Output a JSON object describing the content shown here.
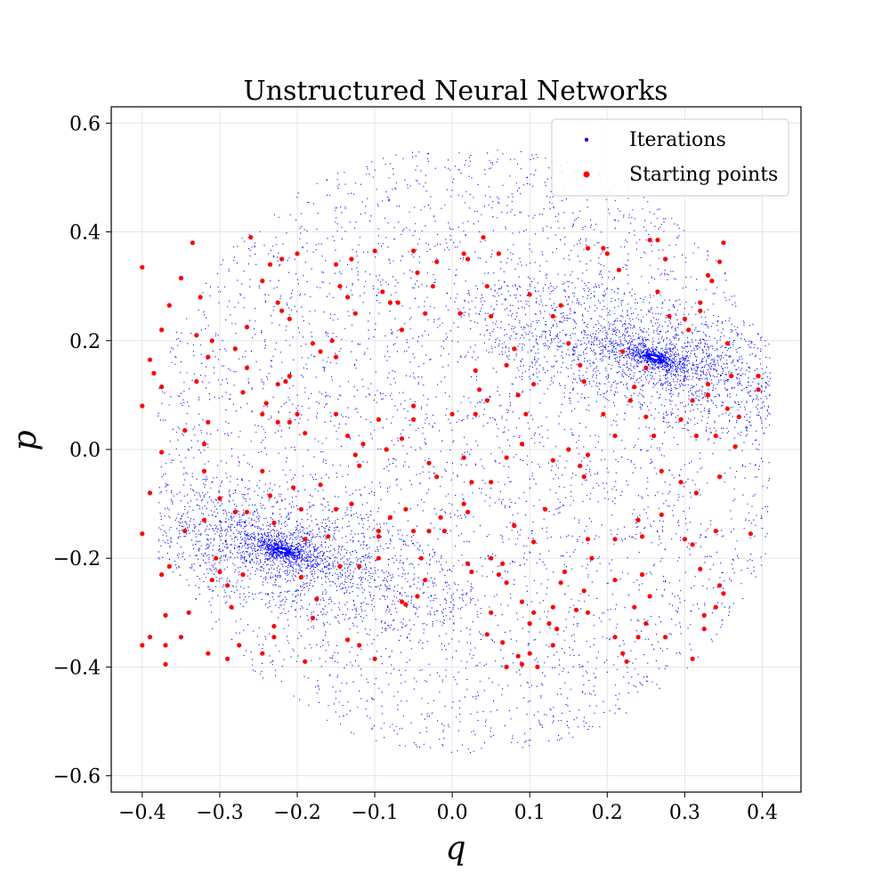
{
  "chart_data": {
    "type": "scatter",
    "title": "Unstructured Neural Networks",
    "xlabel": "q",
    "ylabel": "p",
    "xlim": [
      -0.44,
      0.45
    ],
    "ylim": [
      -0.63,
      0.63
    ],
    "xticks": [
      -0.4,
      -0.3,
      -0.2,
      -0.1,
      0.0,
      0.1,
      0.2,
      0.3,
      0.4
    ],
    "xtick_labels": [
      "−0.4",
      "−0.3",
      "−0.2",
      "−0.1",
      "0.0",
      "0.1",
      "0.2",
      "0.3",
      "0.4"
    ],
    "yticks": [
      -0.6,
      -0.4,
      -0.2,
      0.0,
      0.2,
      0.4,
      0.6
    ],
    "ytick_labels": [
      "−0.6",
      "−0.4",
      "−0.2",
      "0.0",
      "0.2",
      "0.4",
      "0.6"
    ],
    "grid": true,
    "legend_position": "top-right",
    "series": [
      {
        "name": "Iterations",
        "color": "#0000ff",
        "marker_size": "small",
        "attractors": [
          [
            0.26,
            0.17
          ],
          [
            -0.22,
            -0.185
          ]
        ],
        "x_range": [
          -0.38,
          0.41
        ],
        "y_range": [
          -0.58,
          0.58
        ]
      },
      {
        "name": "Starting points",
        "color": "#ff0000",
        "marker_size": "large",
        "points": [
          [
            -0.4,
            0.335
          ],
          [
            -0.35,
            0.315
          ],
          [
            -0.335,
            0.38
          ],
          [
            -0.325,
            0.28
          ],
          [
            -0.365,
            0.265
          ],
          [
            -0.375,
            0.22
          ],
          [
            -0.39,
            0.165
          ],
          [
            -0.385,
            0.14
          ],
          [
            -0.375,
            0.115
          ],
          [
            -0.4,
            0.08
          ],
          [
            -0.345,
            0.035
          ],
          [
            -0.375,
            -0.005
          ],
          [
            -0.39,
            -0.08
          ],
          [
            -0.4,
            -0.155
          ],
          [
            -0.345,
            -0.15
          ],
          [
            -0.365,
            -0.215
          ],
          [
            -0.375,
            -0.23
          ],
          [
            -0.37,
            -0.305
          ],
          [
            -0.34,
            -0.3
          ],
          [
            -0.35,
            -0.345
          ],
          [
            -0.37,
            -0.36
          ],
          [
            -0.39,
            -0.345
          ],
          [
            -0.4,
            -0.36
          ],
          [
            -0.37,
            -0.395
          ],
          [
            -0.315,
            -0.375
          ],
          [
            -0.29,
            -0.385
          ],
          [
            -0.275,
            -0.36
          ],
          [
            -0.285,
            -0.29
          ],
          [
            -0.3,
            -0.225
          ],
          [
            -0.31,
            -0.24
          ],
          [
            -0.29,
            -0.25
          ],
          [
            -0.305,
            -0.2
          ],
          [
            -0.32,
            -0.13
          ],
          [
            -0.3,
            -0.09
          ],
          [
            -0.32,
            -0.04
          ],
          [
            -0.32,
            0.01
          ],
          [
            -0.315,
            0.05
          ],
          [
            -0.33,
            0.125
          ],
          [
            -0.315,
            0.17
          ],
          [
            -0.31,
            0.2
          ],
          [
            -0.33,
            0.21
          ],
          [
            -0.27,
            0.105
          ],
          [
            -0.265,
            0.15
          ],
          [
            -0.28,
            0.185
          ],
          [
            -0.265,
            0.225
          ],
          [
            -0.26,
            0.39
          ],
          [
            -0.245,
            0.31
          ],
          [
            -0.235,
            0.34
          ],
          [
            -0.22,
            0.35
          ],
          [
            -0.225,
            0.27
          ],
          [
            -0.22,
            0.255
          ],
          [
            -0.21,
            0.24
          ],
          [
            -0.225,
            0.12
          ],
          [
            -0.215,
            0.125
          ],
          [
            -0.21,
            0.135
          ],
          [
            -0.245,
            0.065
          ],
          [
            -0.24,
            0.085
          ],
          [
            -0.225,
            0.05
          ],
          [
            -0.21,
            0.05
          ],
          [
            -0.205,
            -0.07
          ],
          [
            -0.245,
            -0.04
          ],
          [
            -0.235,
            -0.085
          ],
          [
            -0.265,
            -0.115
          ],
          [
            -0.28,
            -0.115
          ],
          [
            -0.23,
            -0.135
          ],
          [
            -0.195,
            -0.11
          ],
          [
            -0.19,
            -0.165
          ],
          [
            -0.195,
            -0.235
          ],
          [
            -0.175,
            -0.275
          ],
          [
            -0.18,
            -0.31
          ],
          [
            -0.19,
            -0.39
          ],
          [
            -0.23,
            -0.325
          ],
          [
            -0.23,
            -0.345
          ],
          [
            -0.245,
            -0.375
          ],
          [
            -0.27,
            -0.23
          ],
          [
            -0.2,
            0.36
          ],
          [
            -0.15,
            0.34
          ],
          [
            -0.13,
            0.35
          ],
          [
            -0.135,
            0.28
          ],
          [
            -0.145,
            0.3
          ],
          [
            -0.155,
            0.2
          ],
          [
            -0.15,
            0.17
          ],
          [
            -0.18,
            0.195
          ],
          [
            -0.17,
            0.18
          ],
          [
            -0.125,
            0.25
          ],
          [
            -0.2,
            0.065
          ],
          [
            -0.19,
            0.03
          ],
          [
            -0.17,
            -0.065
          ],
          [
            -0.15,
            -0.11
          ],
          [
            -0.13,
            -0.1
          ],
          [
            -0.15,
            0.065
          ],
          [
            -0.135,
            0.025
          ],
          [
            -0.12,
            -0.03
          ],
          [
            -0.115,
            0.01
          ],
          [
            -0.125,
            -0.01
          ],
          [
            -0.16,
            -0.16
          ],
          [
            -0.145,
            -0.215
          ],
          [
            -0.12,
            -0.215
          ],
          [
            -0.095,
            -0.15
          ],
          [
            -0.095,
            -0.16
          ],
          [
            -0.135,
            -0.35
          ],
          [
            -0.12,
            -0.36
          ],
          [
            -0.1,
            -0.385
          ],
          [
            -0.095,
            -0.2
          ],
          [
            -0.08,
            -0.125
          ],
          [
            -0.1,
            0.365
          ],
          [
            -0.09,
            0.29
          ],
          [
            -0.08,
            0.27
          ],
          [
            -0.07,
            0.27
          ],
          [
            -0.065,
            0.22
          ],
          [
            -0.045,
            0.325
          ],
          [
            -0.05,
            0.365
          ],
          [
            -0.02,
            0.345
          ],
          [
            -0.025,
            0.3
          ],
          [
            -0.035,
            0.25
          ],
          [
            -0.05,
            0.08
          ],
          [
            -0.05,
            0.055
          ],
          [
            -0.065,
            0.02
          ],
          [
            -0.085,
            0.0
          ],
          [
            -0.095,
            0.055
          ],
          [
            -0.06,
            -0.11
          ],
          [
            -0.05,
            -0.15
          ],
          [
            -0.04,
            -0.2
          ],
          [
            -0.045,
            -0.27
          ],
          [
            -0.03,
            -0.15
          ],
          [
            -0.065,
            -0.28
          ],
          [
            -0.06,
            -0.285
          ],
          [
            -0.035,
            -0.24
          ],
          [
            -0.02,
            -0.05
          ],
          [
            -0.03,
            -0.025
          ],
          [
            0.0,
            0.065
          ],
          [
            0.01,
            0.25
          ],
          [
            0.02,
            0.35
          ],
          [
            0.015,
            0.36
          ],
          [
            0.04,
            0.39
          ],
          [
            0.045,
            0.3
          ],
          [
            0.05,
            0.245
          ],
          [
            0.06,
            0.36
          ],
          [
            0.03,
            0.145
          ],
          [
            0.035,
            0.11
          ],
          [
            0.03,
            0.065
          ],
          [
            0.045,
            0.09
          ],
          [
            0.07,
            0.155
          ],
          [
            0.08,
            0.185
          ],
          [
            0.085,
            0.1
          ],
          [
            0.1,
            0.285
          ],
          [
            0.105,
            0.12
          ],
          [
            0.095,
            0.065
          ],
          [
            0.09,
            0.01
          ],
          [
            0.07,
            -0.015
          ],
          [
            0.015,
            -0.015
          ],
          [
            0.025,
            -0.06
          ],
          [
            0.015,
            -0.1
          ],
          [
            0.05,
            -0.06
          ],
          [
            0.02,
            -0.115
          ],
          [
            -0.015,
            -0.125
          ],
          [
            -0.01,
            -0.15
          ],
          [
            0.02,
            -0.21
          ],
          [
            0.025,
            -0.225
          ],
          [
            0.05,
            -0.2
          ],
          [
            0.065,
            -0.21
          ],
          [
            0.06,
            -0.23
          ],
          [
            0.07,
            -0.245
          ],
          [
            0.05,
            -0.3
          ],
          [
            0.045,
            -0.34
          ],
          [
            0.065,
            -0.355
          ],
          [
            0.07,
            -0.4
          ],
          [
            0.085,
            -0.38
          ],
          [
            0.09,
            -0.395
          ],
          [
            0.1,
            -0.375
          ],
          [
            0.09,
            -0.28
          ],
          [
            0.105,
            -0.3
          ],
          [
            0.1,
            -0.32
          ],
          [
            0.11,
            -0.4
          ],
          [
            0.13,
            -0.29
          ],
          [
            0.125,
            -0.32
          ],
          [
            0.135,
            -0.33
          ],
          [
            0.13,
            -0.36
          ],
          [
            0.14,
            -0.245
          ],
          [
            0.145,
            -0.225
          ],
          [
            0.08,
            -0.14
          ],
          [
            0.105,
            -0.17
          ],
          [
            0.12,
            -0.11
          ],
          [
            0.13,
            -0.02
          ],
          [
            0.15,
            0.0
          ],
          [
            0.13,
            0.245
          ],
          [
            0.14,
            0.265
          ],
          [
            0.15,
            0.195
          ],
          [
            0.165,
            0.155
          ],
          [
            0.17,
            0.125
          ],
          [
            0.175,
            0.37
          ],
          [
            0.195,
            0.37
          ],
          [
            0.2,
            0.36
          ],
          [
            0.215,
            0.33
          ],
          [
            0.22,
            0.18
          ],
          [
            0.25,
            0.15
          ],
          [
            0.235,
            0.115
          ],
          [
            0.23,
            0.09
          ],
          [
            0.25,
            0.06
          ],
          [
            0.26,
            0.025
          ],
          [
            0.195,
            0.065
          ],
          [
            0.21,
            0.025
          ],
          [
            0.175,
            -0.01
          ],
          [
            0.165,
            -0.03
          ],
          [
            0.17,
            -0.05
          ],
          [
            0.175,
            -0.165
          ],
          [
            0.21,
            -0.165
          ],
          [
            0.245,
            -0.16
          ],
          [
            0.24,
            -0.13
          ],
          [
            0.27,
            -0.04
          ],
          [
            0.27,
            -0.12
          ],
          [
            0.245,
            -0.23
          ],
          [
            0.255,
            -0.27
          ],
          [
            0.235,
            -0.29
          ],
          [
            0.21,
            -0.345
          ],
          [
            0.22,
            -0.375
          ],
          [
            0.225,
            -0.39
          ],
          [
            0.24,
            -0.345
          ],
          [
            0.25,
            -0.32
          ],
          [
            0.275,
            -0.345
          ],
          [
            0.17,
            -0.26
          ],
          [
            0.175,
            -0.3
          ],
          [
            0.16,
            -0.295
          ],
          [
            0.18,
            -0.2
          ],
          [
            0.21,
            -0.24
          ],
          [
            0.255,
            0.385
          ],
          [
            0.265,
            0.385
          ],
          [
            0.275,
            0.35
          ],
          [
            0.265,
            0.29
          ],
          [
            0.28,
            0.245
          ],
          [
            0.3,
            0.24
          ],
          [
            0.305,
            0.22
          ],
          [
            0.32,
            0.27
          ],
          [
            0.32,
            0.255
          ],
          [
            0.33,
            0.32
          ],
          [
            0.345,
            0.345
          ],
          [
            0.335,
            0.31
          ],
          [
            0.35,
            0.38
          ],
          [
            0.355,
            0.195
          ],
          [
            0.36,
            0.135
          ],
          [
            0.33,
            0.12
          ],
          [
            0.355,
            0.075
          ],
          [
            0.37,
            0.06
          ],
          [
            0.31,
            0.09
          ],
          [
            0.33,
            0.1
          ],
          [
            0.295,
            0.055
          ],
          [
            0.315,
            0.025
          ],
          [
            0.34,
            0.025
          ],
          [
            0.365,
            0.005
          ],
          [
            0.345,
            -0.05
          ],
          [
            0.295,
            -0.06
          ],
          [
            0.315,
            -0.08
          ],
          [
            0.34,
            -0.15
          ],
          [
            0.3,
            -0.165
          ],
          [
            0.31,
            -0.175
          ],
          [
            0.32,
            -0.22
          ],
          [
            0.345,
            -0.25
          ],
          [
            0.35,
            -0.265
          ],
          [
            0.34,
            -0.29
          ],
          [
            0.325,
            -0.305
          ],
          [
            0.325,
            -0.33
          ],
          [
            0.31,
            -0.385
          ],
          [
            0.385,
            -0.155
          ],
          [
            0.395,
            0.135
          ],
          [
            0.395,
            0.11
          ]
        ]
      }
    ]
  }
}
